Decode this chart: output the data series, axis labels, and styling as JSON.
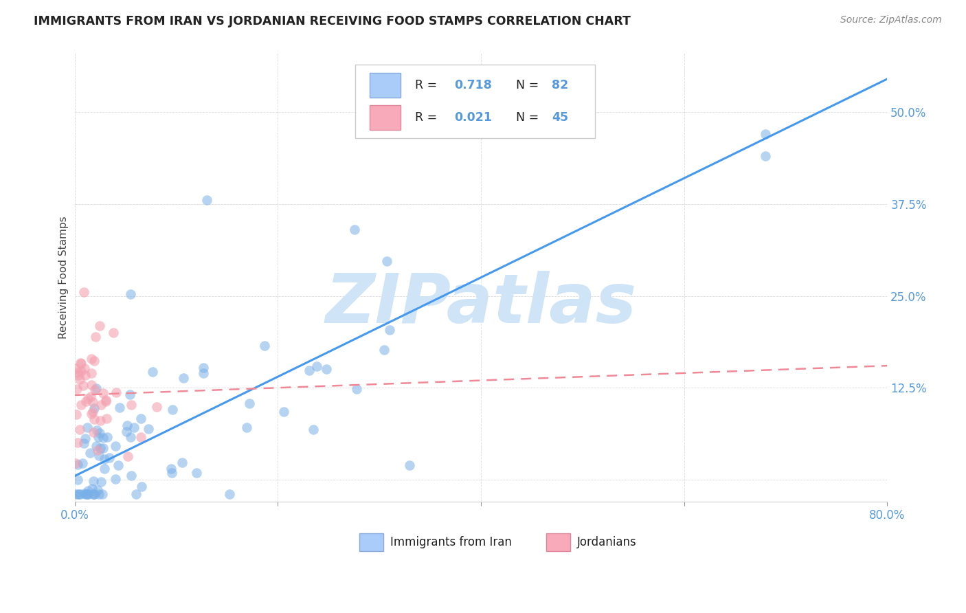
{
  "title": "IMMIGRANTS FROM IRAN VS JORDANIAN RECEIVING FOOD STAMPS CORRELATION CHART",
  "source": "Source: ZipAtlas.com",
  "ylabel": "Receiving Food Stamps",
  "xlim": [
    0.0,
    0.8
  ],
  "ylim": [
    -0.03,
    0.58
  ],
  "grid_color": "#cccccc",
  "background_color": "#ffffff",
  "iran_color": "#7ab0e8",
  "jordan_color": "#f4a0b0",
  "iran_R": 0.718,
  "iran_N": 82,
  "jordan_R": 0.021,
  "jordan_N": 45,
  "watermark": "ZIPatlas",
  "watermark_color": "#d0e4f7",
  "legend_label_iran": "Immigrants from Iran",
  "legend_label_jordan": "Jordanians",
  "iran_line_color": "#4499ee",
  "jordan_line_color": "#f08898",
  "tick_color": "#5599dd",
  "iran_line_x0": 0.0,
  "iran_line_y0": 0.005,
  "iran_line_x1": 0.8,
  "iran_line_y1": 0.545,
  "jordan_line_x0": 0.0,
  "jordan_line_y0": 0.115,
  "jordan_line_x1": 0.8,
  "jordan_line_y1": 0.155
}
